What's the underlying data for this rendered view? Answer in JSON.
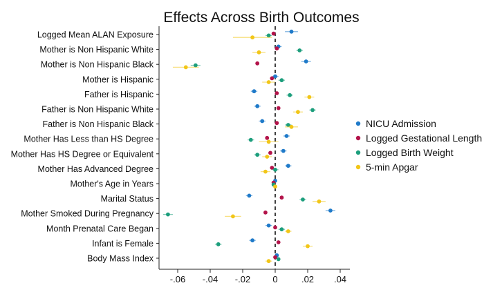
{
  "chart_data": {
    "type": "scatter",
    "subtype": "coefficient-plot",
    "title": "Effects Across Birth Outcomes",
    "xlabel": "",
    "ylabel": "",
    "xlim": [
      -0.07,
      0.045
    ],
    "xticks": [
      -0.06,
      -0.04,
      -0.02,
      0,
      0.02,
      0.04
    ],
    "xtick_labels": [
      "-.06",
      "-.04",
      "-.02",
      "0",
      ".02",
      ".04"
    ],
    "reference_line": 0,
    "categories": [
      "Logged Mean ALAN Exposure",
      "Mother is Non Hispanic White",
      "Mother is Non Hispanic Black",
      "Mother is Hispanic",
      "Father is Hispanic",
      "Father is Non Hispanic White",
      "Father is Non Hispanic Black",
      "Mother Has Less than HS Degree",
      "Mother Has HS Degree or Equivalent",
      "Mother Has Advanced Degree",
      "Mother's Age in Years",
      "Marital Status",
      "Mother Smoked During Pregnancy",
      "Month Prenatal Care Began",
      "Infant is Female",
      "Body Mass Index"
    ],
    "series": [
      {
        "name": "NICU Admission",
        "color": "#1f7ac9",
        "values": [
          0.01,
          0.002,
          0.019,
          0.0,
          -0.013,
          -0.011,
          -0.008,
          0.007,
          0.005,
          0.008,
          0.0,
          -0.016,
          0.034,
          -0.004,
          -0.014,
          0.001
        ],
        "ci_half": [
          0.004,
          0.002,
          0.003,
          0.002,
          0.002,
          0.002,
          0.002,
          0.002,
          0.002,
          0.002,
          0.001,
          0.002,
          0.003,
          0.002,
          0.002,
          0.001
        ]
      },
      {
        "name": "Logged Gestational Length",
        "color": "#b3134a",
        "values": [
          -0.001,
          0.001,
          -0.011,
          -0.002,
          0.001,
          0.002,
          0.001,
          -0.005,
          -0.003,
          -0.002,
          -0.001,
          0.004,
          -0.006,
          0.0,
          0.002,
          0.0
        ],
        "ci_half": [
          0.001,
          0.001,
          0.001,
          0.001,
          0.001,
          0.001,
          0.001,
          0.001,
          0.001,
          0.001,
          0.001,
          0.001,
          0.001,
          0.001,
          0.001,
          0.001
        ]
      },
      {
        "name": "Logged Birth Weight",
        "color": "#1c9e7c",
        "values": [
          -0.004,
          0.015,
          -0.049,
          0.004,
          0.009,
          0.023,
          0.008,
          -0.015,
          -0.011,
          0.0,
          -0.001,
          0.017,
          -0.066,
          0.004,
          -0.035,
          0.002
        ],
        "ci_half": [
          0.002,
          0.002,
          0.003,
          0.002,
          0.002,
          0.002,
          0.002,
          0.002,
          0.002,
          0.002,
          0.001,
          0.002,
          0.003,
          0.002,
          0.002,
          0.001
        ]
      },
      {
        "name": "5-min Apgar",
        "color": "#f2c618",
        "values": [
          -0.014,
          -0.01,
          -0.055,
          -0.004,
          0.021,
          0.014,
          0.01,
          -0.004,
          -0.005,
          -0.006,
          0.0,
          0.027,
          -0.026,
          0.008,
          0.02,
          -0.004
        ],
        "ci_half": [
          0.012,
          0.004,
          0.008,
          0.004,
          0.003,
          0.003,
          0.004,
          0.006,
          0.003,
          0.003,
          0.001,
          0.004,
          0.005,
          0.002,
          0.003,
          0.002
        ]
      }
    ],
    "legend_position": "right"
  }
}
